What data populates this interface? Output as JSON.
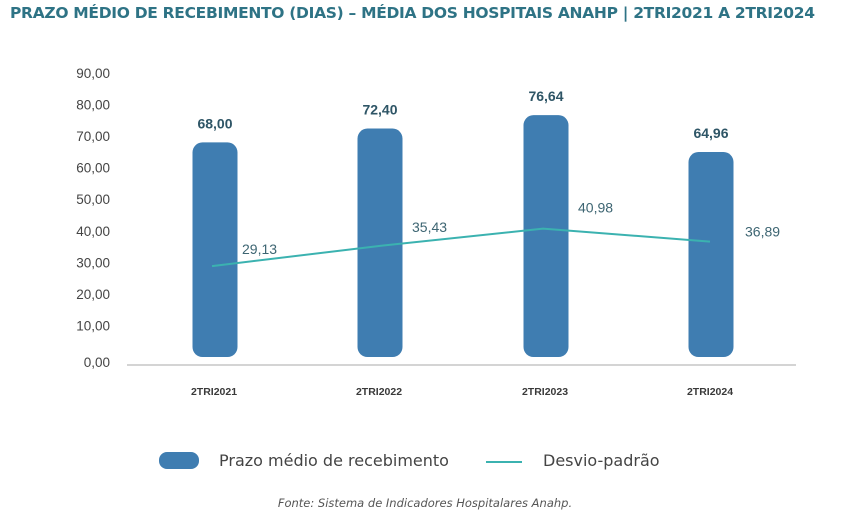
{
  "chart_data": {
    "type": "bar",
    "title": "PRAZO MÉDIO DE RECEBIMENTO (DIAS) – MÉDIA DOS HOSPITAIS ANAHP | 2TRI2021 A 2TRI2024",
    "categories": [
      "2TRI2021",
      "2TRI2022",
      "2TRI2023",
      "2TRI2024"
    ],
    "series": [
      {
        "name": "Prazo médio de recebimento",
        "type": "bar",
        "color": "#3f7db1",
        "values": [
          68.0,
          72.4,
          76.64,
          64.96
        ],
        "labels": [
          "68,00",
          "72,40",
          "76,64",
          "64,96"
        ]
      },
      {
        "name": "Desvio-padrão",
        "type": "line",
        "color": "#3bb2b0",
        "values": [
          29.13,
          35.43,
          40.98,
          36.89
        ],
        "labels": [
          "29,13",
          "35,43",
          "40,98",
          "36,89"
        ]
      }
    ],
    "yticks": [
      "0,00",
      "10,00",
      "20,00",
      "30,00",
      "40,00",
      "50,00",
      "60,00",
      "70,00",
      "80,00",
      "90,00"
    ],
    "ylim": [
      0,
      90
    ],
    "xlabel": "",
    "ylabel": "",
    "grid": false,
    "legend_position": "bottom",
    "source": "Fonte: Sistema de Indicadores Hospitalares Anahp."
  }
}
